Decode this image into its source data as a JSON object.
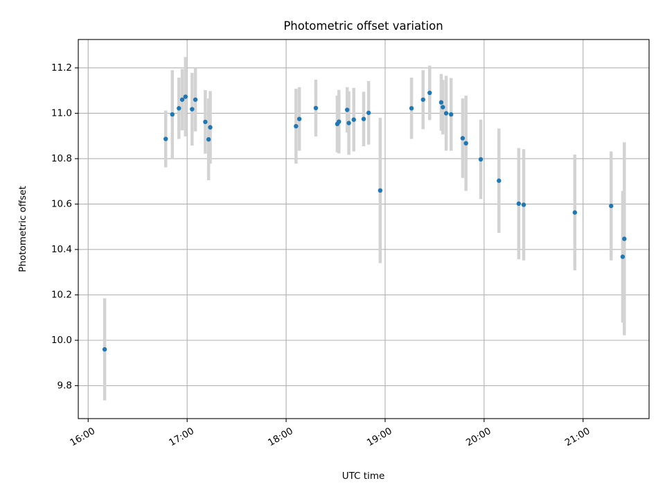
{
  "chart_data": {
    "type": "scatter",
    "title": "Photometric offset variation",
    "xlabel": "UTC time",
    "ylabel": "Photometric offset",
    "xlim": [
      "15:54",
      "21:40"
    ],
    "ylim": [
      9.655,
      11.325
    ],
    "x_ticks": [
      "16:00",
      "17:00",
      "18:00",
      "19:00",
      "20:00",
      "21:00"
    ],
    "y_ticks": [
      9.8,
      10.0,
      10.2,
      10.4,
      10.6,
      10.8,
      11.0,
      11.2
    ],
    "y_tick_labels": [
      "9.8",
      "10.0",
      "10.2",
      "10.4",
      "10.6",
      "10.8",
      "11.0",
      "11.2"
    ],
    "grid": true,
    "colors": {
      "point": "#1f77b4",
      "errorbar": "#d3d3d3",
      "grid": "#b0b0b0"
    },
    "points": [
      {
        "x": "16:10",
        "y": 9.96,
        "yerr": 0.225
      },
      {
        "x": "16:47",
        "y": 10.887,
        "yerr": 0.125
      },
      {
        "x": "16:51",
        "y": 10.995,
        "yerr": 0.195
      },
      {
        "x": "16:55",
        "y": 11.022,
        "yerr": 0.135
      },
      {
        "x": "16:57",
        "y": 11.06,
        "yerr": 0.135
      },
      {
        "x": "16:59",
        "y": 11.073,
        "yerr": 0.175
      },
      {
        "x": "17:03",
        "y": 11.018,
        "yerr": 0.16
      },
      {
        "x": "17:05",
        "y": 11.06,
        "yerr": 0.14
      },
      {
        "x": "17:11",
        "y": 10.962,
        "yerr": 0.14
      },
      {
        "x": "17:13",
        "y": 10.885,
        "yerr": 0.18
      },
      {
        "x": "17:14",
        "y": 10.938,
        "yerr": 0.16
      },
      {
        "x": "18:06",
        "y": 10.943,
        "yerr": 0.165
      },
      {
        "x": "18:08",
        "y": 10.975,
        "yerr": 0.14
      },
      {
        "x": "18:18",
        "y": 11.023,
        "yerr": 0.125
      },
      {
        "x": "18:31",
        "y": 10.953,
        "yerr": 0.125
      },
      {
        "x": "18:32",
        "y": 10.963,
        "yerr": 0.14
      },
      {
        "x": "18:37",
        "y": 11.015,
        "yerr": 0.1
      },
      {
        "x": "18:38",
        "y": 10.957,
        "yerr": 0.14
      },
      {
        "x": "18:41",
        "y": 10.972,
        "yerr": 0.14
      },
      {
        "x": "18:47",
        "y": 10.975,
        "yerr": 0.12
      },
      {
        "x": "18:50",
        "y": 11.002,
        "yerr": 0.14
      },
      {
        "x": "18:57",
        "y": 10.66,
        "yerr": 0.32
      },
      {
        "x": "19:16",
        "y": 11.022,
        "yerr": 0.135
      },
      {
        "x": "19:23",
        "y": 11.06,
        "yerr": 0.13
      },
      {
        "x": "19:27",
        "y": 11.09,
        "yerr": 0.12
      },
      {
        "x": "19:34",
        "y": 11.048,
        "yerr": 0.125
      },
      {
        "x": "19:35",
        "y": 11.027,
        "yerr": 0.12
      },
      {
        "x": "19:37",
        "y": 11.0,
        "yerr": 0.165
      },
      {
        "x": "19:40",
        "y": 10.995,
        "yerr": 0.16
      },
      {
        "x": "19:47",
        "y": 10.89,
        "yerr": 0.175
      },
      {
        "x": "19:49",
        "y": 10.868,
        "yerr": 0.21
      },
      {
        "x": "19:58",
        "y": 10.797,
        "yerr": 0.175
      },
      {
        "x": "20:09",
        "y": 10.703,
        "yerr": 0.23
      },
      {
        "x": "20:21",
        "y": 10.602,
        "yerr": 0.245
      },
      {
        "x": "20:24",
        "y": 10.597,
        "yerr": 0.245
      },
      {
        "x": "20:55",
        "y": 10.563,
        "yerr": 0.255
      },
      {
        "x": "21:17",
        "y": 10.592,
        "yerr": 0.24
      },
      {
        "x": "21:24",
        "y": 10.368,
        "yerr": 0.29
      },
      {
        "x": "21:25",
        "y": 10.447,
        "yerr": 0.425
      }
    ]
  }
}
